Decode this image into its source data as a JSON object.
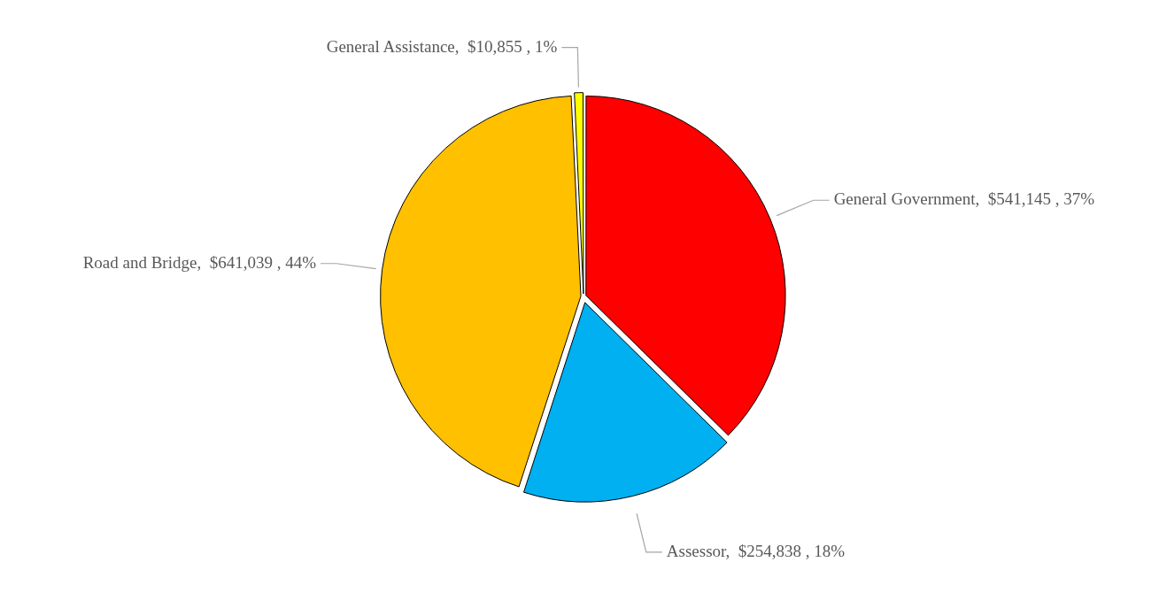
{
  "chart_data": {
    "type": "pie",
    "categories": [
      "General Government",
      "Assessor",
      "Road and Bridge",
      "General Assistance"
    ],
    "values": [
      541145,
      254838,
      641039,
      10855
    ],
    "colors": [
      "#ff0000",
      "#00b0f0",
      "#ffc000",
      "#ffff00"
    ],
    "value_labels": [
      "$541,145 , 37%",
      "$254,838 , 18%",
      "$641,039 , 44%",
      "$10,855 , 1%"
    ],
    "legend": false
  }
}
